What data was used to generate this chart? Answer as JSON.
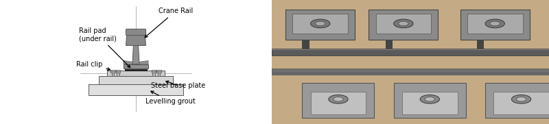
{
  "bg_color": "#ffffff",
  "colors": {
    "crane_rail_head": "#888888",
    "crane_rail_web": "#909090",
    "crane_rail_flange": "#909090",
    "rail_pad": "#333333",
    "base_plate_top": "#bbbbbb",
    "base_plate_main": "#cccccc",
    "base_plate_light": "#d8d8d8",
    "levelling": "#e0e0e0",
    "bolt_body": "#b8b8b8",
    "bolt_nut": "#c0c0c0",
    "centerline": "#999999",
    "outline": "#555555",
    "white": "#ffffff"
  },
  "labels": {
    "crane_rail": "Crane Rail",
    "rail_pad": "Rail pad\n(under rail)",
    "rail_clip": "Rail clip",
    "steel_base": "Steel base plate",
    "levelling": "Levelling grout"
  },
  "figsize": [
    8.0,
    1.81
  ],
  "dpi": 100,
  "font_size": 7.0
}
